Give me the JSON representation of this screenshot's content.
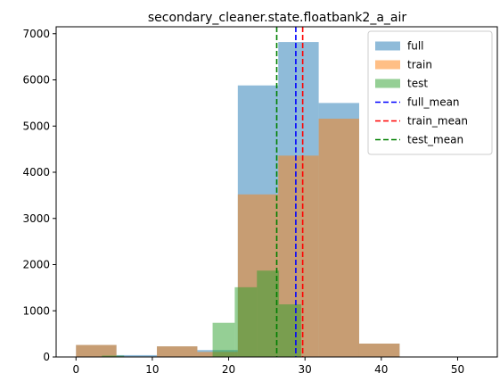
{
  "chart_data": {
    "type": "bar",
    "title": "secondary_cleaner.state.floatbank2_a_air",
    "xlabel": "",
    "ylabel": "",
    "xlim": [
      -2.6,
      55.2
    ],
    "ylim": [
      0,
      7150
    ],
    "xticks": [
      0,
      10,
      20,
      30,
      40,
      50
    ],
    "yticks": [
      0,
      1000,
      2000,
      3000,
      4000,
      5000,
      6000,
      7000
    ],
    "xtick_labels": [
      "0",
      "10",
      "20",
      "30",
      "40",
      "50"
    ],
    "ytick_labels": [
      "0",
      "1000",
      "2000",
      "3000",
      "4000",
      "5000",
      "6000",
      "7000"
    ],
    "legend_position": "top-right",
    "series": [
      {
        "name": "full",
        "kind": "hist",
        "color": "#1f77b4",
        "alpha": 0.5,
        "bin_edges": [
          0,
          5.3,
          10.6,
          15.9,
          21.2,
          26.5,
          31.8,
          37.1,
          42.4,
          47.7,
          53.0
        ],
        "counts": [
          260,
          40,
          230,
          150,
          5880,
          6820,
          5500,
          290,
          0,
          5
        ]
      },
      {
        "name": "train",
        "kind": "hist",
        "color": "#ff7f0e",
        "alpha": 0.5,
        "bin_edges": [
          0,
          5.3,
          10.6,
          15.9,
          21.2,
          26.5,
          31.8,
          37.1,
          42.4,
          47.7,
          53.0
        ],
        "counts": [
          260,
          10,
          230,
          110,
          3520,
          4360,
          5160,
          290,
          0,
          5
        ]
      },
      {
        "name": "test",
        "kind": "hist",
        "color": "#2ca02c",
        "alpha": 0.5,
        "bin_edges": [
          3.4,
          6.3,
          9.2,
          12.1,
          15.0,
          17.9,
          20.8,
          23.7,
          26.6,
          29.5,
          32.4
        ],
        "counts": [
          30,
          5,
          5,
          0,
          10,
          740,
          1510,
          1870,
          1140,
          5
        ]
      },
      {
        "name": "full_mean",
        "kind": "vline",
        "color": "#0000ff",
        "x": 28.8
      },
      {
        "name": "train_mean",
        "kind": "vline",
        "color": "#ff0000",
        "x": 29.7
      },
      {
        "name": "test_mean",
        "kind": "vline",
        "color": "#008000",
        "x": 26.3
      }
    ]
  }
}
